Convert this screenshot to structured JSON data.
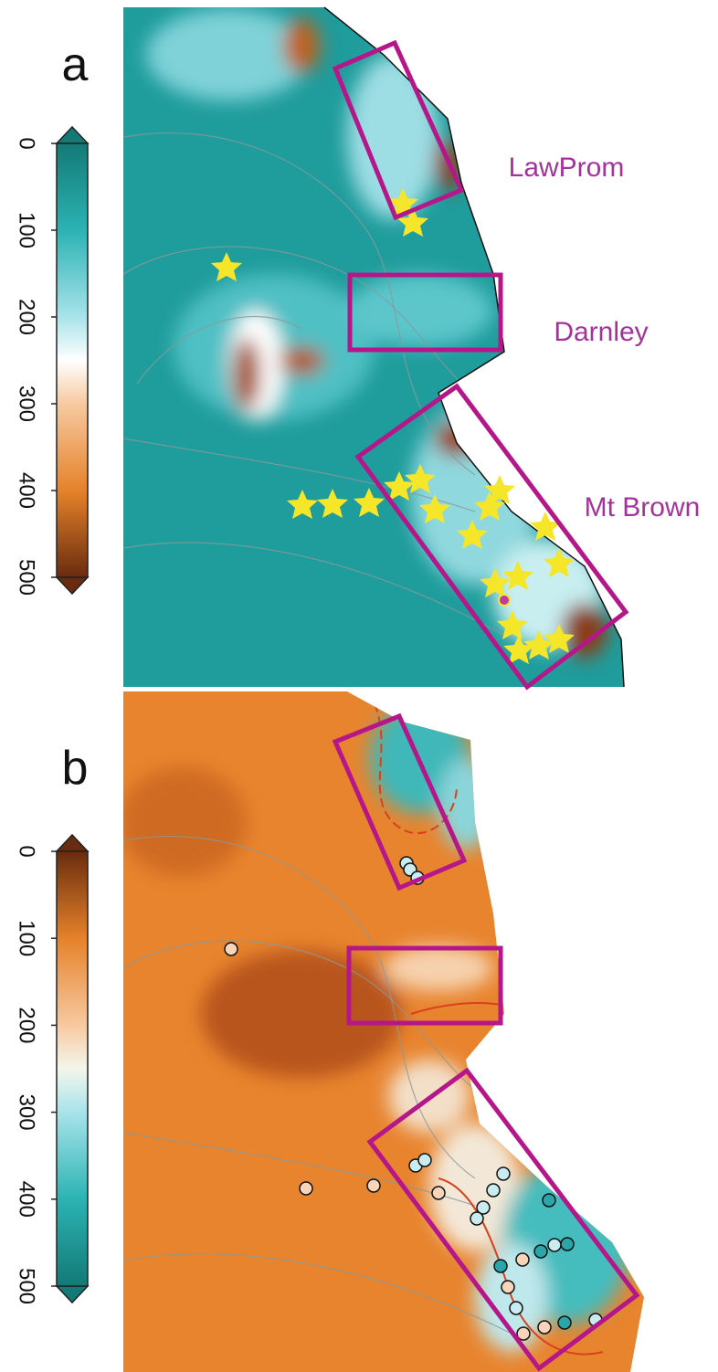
{
  "panels": [
    {
      "label": "a",
      "colorbar": {
        "lim": [
          0,
          500
        ],
        "ticks": [
          0,
          100,
          200,
          300,
          400,
          500
        ]
      }
    },
    {
      "label": "b",
      "colorbar": {
        "lim": [
          0,
          500
        ],
        "ticks": [
          0,
          100,
          200,
          300,
          400,
          500
        ]
      }
    }
  ],
  "regions": [
    "LawProm",
    "Darnley",
    "Mt Brown"
  ]
}
